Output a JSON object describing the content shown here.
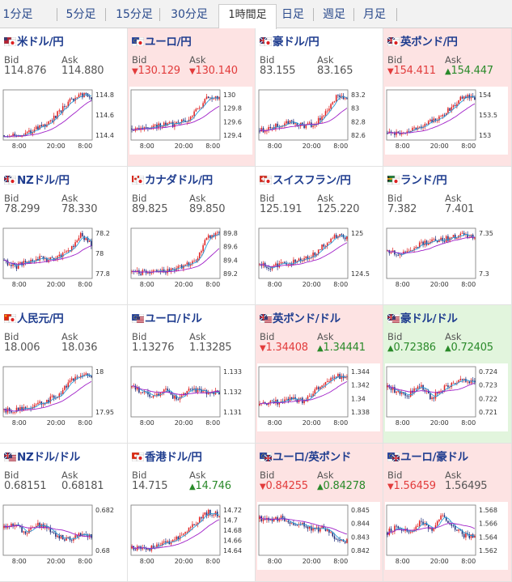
{
  "tabs": [
    {
      "label": "1分足",
      "active": false
    },
    {
      "label": "5分足",
      "active": false
    },
    {
      "label": "15分足",
      "active": false
    },
    {
      "label": "30分足",
      "active": false
    },
    {
      "label": "1時間足",
      "active": true
    },
    {
      "label": "日足",
      "active": false
    },
    {
      "label": "週足",
      "active": false
    },
    {
      "label": "月足",
      "active": false
    }
  ],
  "labels": {
    "bid": "Bid",
    "ask": "Ask"
  },
  "colors": {
    "down_bg": "#fde3e3",
    "up_bg": "#e2f5dd",
    "bull_candle": "#e02020",
    "bear_candle": "#1c2a78",
    "ma_short": "#2a9ad6",
    "ma_long": "#a020c8"
  },
  "x_ticks": [
    "8:00",
    "20:00",
    "8:00"
  ],
  "pairs": [
    {
      "name": "米ドル/円",
      "flag": "us-jp-flag-icon",
      "bid": "114.876",
      "ask": "114.880",
      "bid_dir": "none",
      "ask_dir": "none",
      "state": "none",
      "y_ticks": [
        "114.8",
        "114.6",
        "114.4"
      ],
      "trend": [
        0.05,
        0.06,
        0.08,
        0.2,
        0.3,
        0.55,
        0.8,
        0.95,
        0.9
      ]
    },
    {
      "name": "ユーロ/円",
      "flag": "eu-jp-flag-icon",
      "bid": "130.129",
      "ask": "130.140",
      "bid_dir": "down",
      "ask_dir": "down",
      "state": "down",
      "y_ticks": [
        "130",
        "129.8",
        "129.6",
        "129.4"
      ],
      "trend": [
        0.2,
        0.18,
        0.22,
        0.3,
        0.28,
        0.4,
        0.6,
        0.9,
        0.85
      ]
    },
    {
      "name": "豪ドル/円",
      "flag": "au-jp-flag-icon",
      "bid": "83.155",
      "ask": "83.165",
      "bid_dir": "none",
      "ask_dir": "none",
      "state": "none",
      "y_ticks": [
        "83.2",
        "83",
        "82.8",
        "82.6"
      ],
      "trend": [
        0.15,
        0.2,
        0.3,
        0.35,
        0.25,
        0.3,
        0.55,
        0.9,
        0.85
      ]
    },
    {
      "name": "英ポンド/円",
      "flag": "gb-jp-flag-icon",
      "bid": "154.411",
      "ask": "154.447",
      "bid_dir": "down",
      "ask_dir": "up",
      "state": "down",
      "y_ticks": [
        "154",
        "153.5",
        "153"
      ],
      "trend": [
        0.1,
        0.08,
        0.15,
        0.25,
        0.35,
        0.5,
        0.7,
        0.92,
        0.85
      ]
    },
    {
      "name": "NZドル/円",
      "flag": "nz-jp-flag-icon",
      "bid": "78.299",
      "ask": "78.330",
      "bid_dir": "none",
      "ask_dir": "none",
      "state": "none",
      "y_ticks": [
        "78.2",
        "78",
        "77.8"
      ],
      "trend": [
        0.35,
        0.2,
        0.3,
        0.4,
        0.35,
        0.45,
        0.55,
        0.9,
        0.7
      ]
    },
    {
      "name": "カナダドル/円",
      "flag": "ca-jp-flag-icon",
      "bid": "89.825",
      "ask": "89.850",
      "bid_dir": "none",
      "ask_dir": "none",
      "state": "none",
      "y_ticks": [
        "89.8",
        "89.6",
        "89.4",
        "89.2"
      ],
      "trend": [
        0.1,
        0.08,
        0.1,
        0.12,
        0.15,
        0.25,
        0.4,
        0.9,
        0.9
      ]
    },
    {
      "name": "スイスフラン/円",
      "flag": "ch-jp-flag-icon",
      "bid": "125.191",
      "ask": "125.220",
      "bid_dir": "none",
      "ask_dir": "none",
      "state": "none",
      "y_ticks": [
        "125",
        "124.5"
      ],
      "trend": [
        0.25,
        0.2,
        0.25,
        0.3,
        0.35,
        0.5,
        0.7,
        0.9,
        0.85
      ]
    },
    {
      "name": "ランド/円",
      "flag": "za-jp-flag-icon",
      "bid": "7.382",
      "ask": "7.401",
      "bid_dir": "none",
      "ask_dir": "none",
      "state": "none",
      "y_ticks": [
        "7.35",
        "7.3"
      ],
      "trend": [
        0.55,
        0.5,
        0.6,
        0.7,
        0.75,
        0.8,
        0.85,
        0.9,
        0.85
      ]
    },
    {
      "name": "人民元/円",
      "flag": "cn-jp-flag-icon",
      "bid": "18.006",
      "ask": "18.036",
      "bid_dir": "none",
      "ask_dir": "none",
      "state": "none",
      "y_ticks": [
        "18",
        "17.95"
      ],
      "trend": [
        0.1,
        0.08,
        0.15,
        0.2,
        0.3,
        0.45,
        0.7,
        0.9,
        0.85
      ]
    },
    {
      "name": "ユーロ/ドル",
      "flag": "eu-us-flag-icon",
      "bid": "1.13276",
      "ask": "1.13285",
      "bid_dir": "none",
      "ask_dir": "none",
      "state": "none",
      "y_ticks": [
        "1.133",
        "1.132",
        "1.131"
      ],
      "trend": [
        0.6,
        0.5,
        0.4,
        0.55,
        0.35,
        0.5,
        0.55,
        0.45,
        0.5
      ]
    },
    {
      "name": "英ポンド/ドル",
      "flag": "gb-us-flag-icon",
      "bid": "1.34408",
      "ask": "1.34441",
      "bid_dir": "down",
      "ask_dir": "up",
      "state": "down",
      "y_ticks": [
        "1.344",
        "1.342",
        "1.34",
        "1.338"
      ],
      "trend": [
        0.2,
        0.3,
        0.25,
        0.35,
        0.3,
        0.5,
        0.7,
        0.85,
        0.8
      ]
    },
    {
      "name": "豪ドル/ドル",
      "flag": "au-us-flag-icon",
      "bid": "0.72386",
      "ask": "0.72405",
      "bid_dir": "up",
      "ask_dir": "up",
      "state": "up",
      "y_ticks": [
        "0.724",
        "0.723",
        "0.722",
        "0.721"
      ],
      "trend": [
        0.6,
        0.5,
        0.45,
        0.65,
        0.35,
        0.55,
        0.7,
        0.75,
        0.7
      ]
    },
    {
      "name": "NZドル/ドル",
      "flag": "nz-us-flag-icon",
      "bid": "0.68151",
      "ask": "0.68181",
      "bid_dir": "none",
      "ask_dir": "none",
      "state": "none",
      "y_ticks": [
        "0.682",
        "0.68"
      ],
      "trend": [
        0.55,
        0.6,
        0.45,
        0.65,
        0.55,
        0.35,
        0.3,
        0.4,
        0.35
      ]
    },
    {
      "name": "香港ドル/円",
      "flag": "hk-jp-flag-icon",
      "bid": "14.715",
      "ask": "14.746",
      "bid_dir": "none",
      "ask_dir": "up",
      "state": "none",
      "y_ticks": [
        "14.72",
        "14.7",
        "14.68",
        "14.66",
        "14.64"
      ],
      "trend": [
        0.1,
        0.08,
        0.12,
        0.2,
        0.3,
        0.45,
        0.7,
        0.9,
        0.85
      ]
    },
    {
      "name": "ユーロ/英ポンド",
      "flag": "eu-gb-flag-icon",
      "bid": "0.84255",
      "ask": "0.84278",
      "bid_dir": "down",
      "ask_dir": "up",
      "state": "down",
      "y_ticks": [
        "0.845",
        "0.844",
        "0.843",
        "0.842"
      ],
      "trend": [
        0.75,
        0.7,
        0.8,
        0.6,
        0.65,
        0.5,
        0.55,
        0.3,
        0.25
      ]
    },
    {
      "name": "ユーロ/豪ドル",
      "flag": "eu-au-flag-icon",
      "bid": "1.56459",
      "ask": "1.56495",
      "bid_dir": "down",
      "ask_dir": "none",
      "state": "down",
      "y_ticks": [
        "1.568",
        "1.566",
        "1.564",
        "1.562"
      ],
      "trend": [
        0.45,
        0.6,
        0.4,
        0.7,
        0.5,
        0.8,
        0.55,
        0.4,
        0.35
      ]
    }
  ]
}
